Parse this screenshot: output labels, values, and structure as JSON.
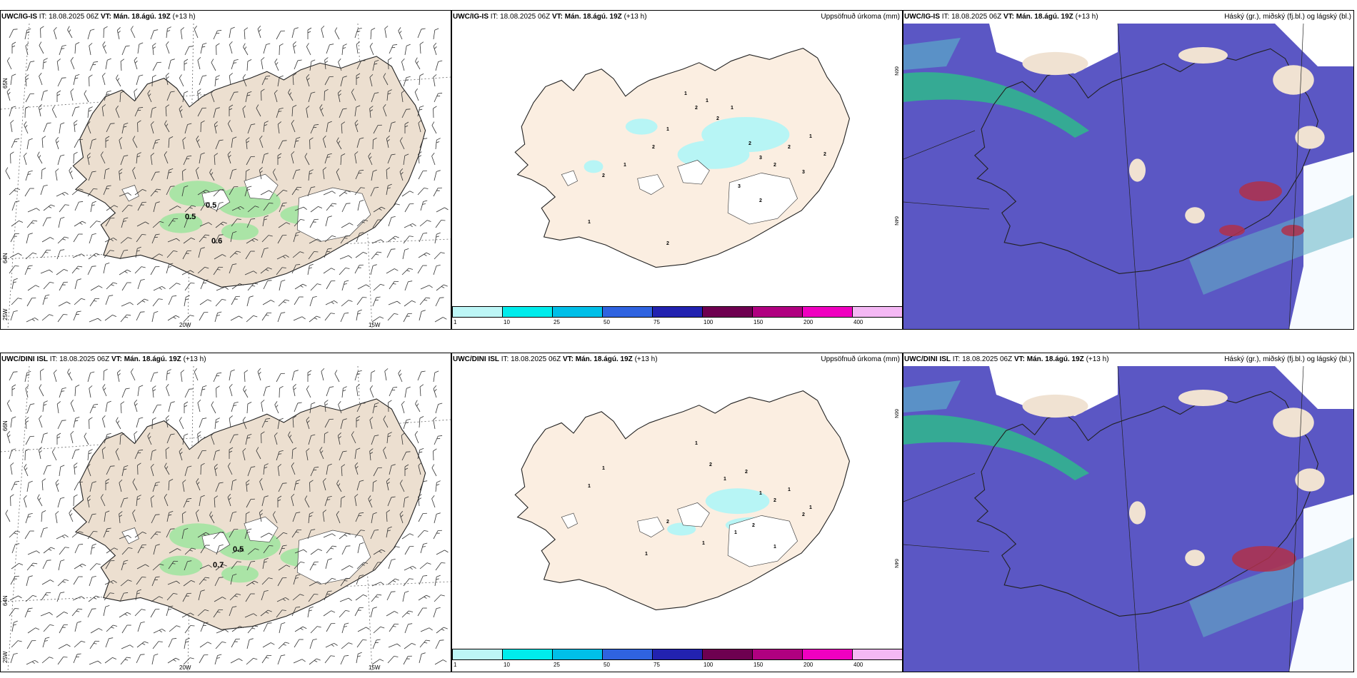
{
  "rows": [
    {
      "model": "UWC/IG-IS",
      "it_label": "IT: 18.08.2025 06Z",
      "vt_label": "VT: Mán. 18.ágú. 19Z",
      "lead": "(+13 h)",
      "panel1": {
        "grid_labels": [
          "65N",
          "64N",
          "25W",
          "20W",
          "15W"
        ],
        "values": [
          "0.5",
          "0.5",
          "0.6"
        ]
      },
      "panel2": {
        "title_right": "Uppsöfnuð úrkoma (mm)",
        "grid_labels": [
          "66N",
          "64N"
        ]
      },
      "panel3": {
        "title_right": "Háský (gr.), miðský (fj.bl.) og lágský (bl.)"
      }
    },
    {
      "model": "UWC/DINI ISL",
      "it_label": "IT: 18.08.2025 06Z",
      "vt_label": "VT: Mán. 18.ágú. 19Z",
      "lead": "(+13 h)",
      "panel1": {
        "grid_labels": [
          "66N",
          "64N",
          "25W",
          "20W",
          "15W"
        ],
        "values": [
          "0.5",
          "0.7"
        ]
      },
      "panel2": {
        "title_right": "Uppsöfnuð úrkoma (mm)",
        "grid_labels": [
          "66N",
          "64N"
        ]
      },
      "panel3": {
        "title_right": "Háský (gr.), miðský (fj.bl.) og lágský (bl.)"
      }
    }
  ],
  "colorbar": {
    "ticks": [
      "1",
      "10",
      "25",
      "50",
      "75",
      "100",
      "150",
      "200",
      "400"
    ],
    "colors": [
      "#bdf6f6",
      "#00ecec",
      "#00bfe8",
      "#2f63e0",
      "#2222b0",
      "#6e0050",
      "#b00080",
      "#f000c0",
      "#f4b8f4"
    ]
  },
  "colors": {
    "land": "#ecdfd0",
    "land_light": "#fbeee1",
    "precip_light": "#b7f5f5",
    "green": "#9fe59f",
    "cloud_high": "#5b57c4",
    "cloud_mid": "#2fb88c",
    "cloud_red": "#b0304a"
  }
}
